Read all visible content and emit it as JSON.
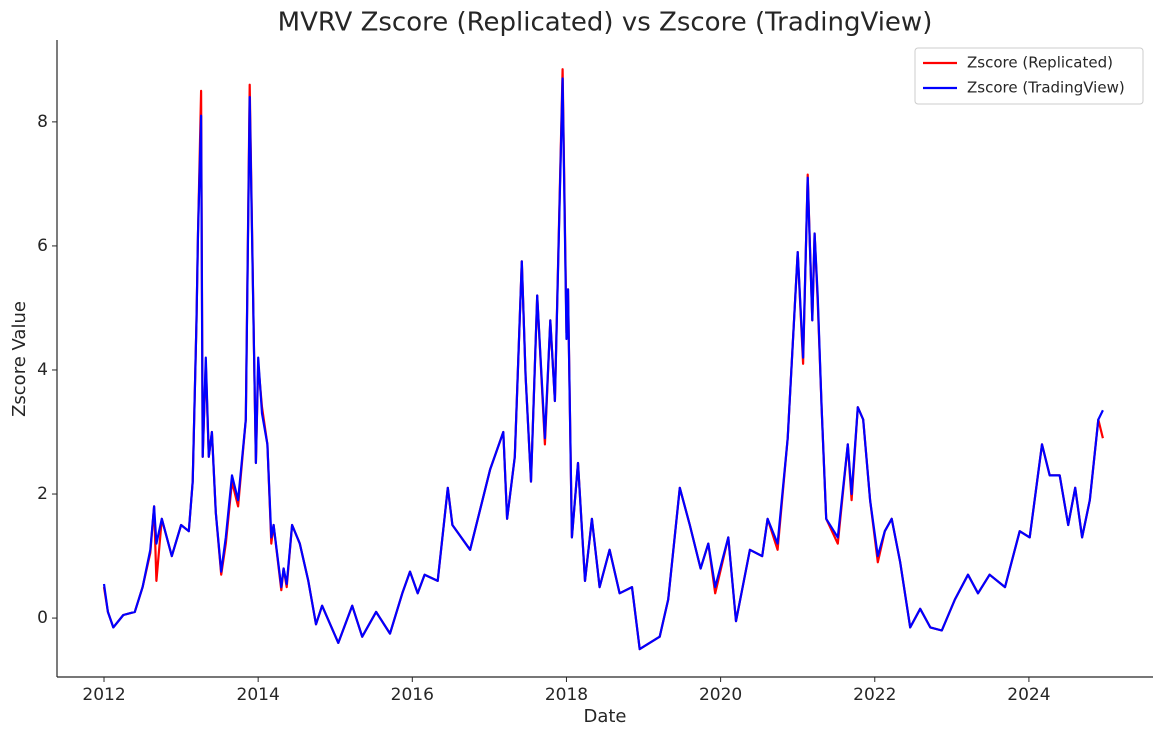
{
  "chart_data": {
    "type": "line",
    "title": "MVRV Zscore (Replicated) vs Zscore (TradingView)",
    "xlabel": "Date",
    "ylabel": "Zscore Value",
    "x": [
      2012.0,
      2012.05,
      2012.12,
      2012.25,
      2012.4,
      2012.5,
      2012.6,
      2012.65,
      2012.68,
      2012.75,
      2012.88,
      2013.0,
      2013.1,
      2013.15,
      2013.2,
      2013.22,
      2013.26,
      2013.28,
      2013.32,
      2013.36,
      2013.4,
      2013.45,
      2013.52,
      2013.58,
      2013.66,
      2013.74,
      2013.84,
      2013.89,
      2013.94,
      2013.97,
      2014.0,
      2014.05,
      2014.12,
      2014.17,
      2014.2,
      2014.3,
      2014.33,
      2014.37,
      2014.44,
      2014.54,
      2014.65,
      2014.75,
      2014.83,
      2015.04,
      2015.22,
      2015.35,
      2015.53,
      2015.71,
      2015.87,
      2015.97,
      2016.07,
      2016.16,
      2016.33,
      2016.46,
      2016.52,
      2016.75,
      2017.01,
      2017.18,
      2017.23,
      2017.33,
      2017.42,
      2017.47,
      2017.54,
      2017.62,
      2017.72,
      2017.79,
      2017.85,
      2017.95,
      2018.0,
      2018.02,
      2018.07,
      2018.15,
      2018.24,
      2018.33,
      2018.43,
      2018.56,
      2018.69,
      2018.85,
      2018.95,
      2019.21,
      2019.32,
      2019.47,
      2019.6,
      2019.74,
      2019.84,
      2019.93,
      2020.1,
      2020.2,
      2020.38,
      2020.54,
      2020.61,
      2020.74,
      2020.87,
      2021.0,
      2021.07,
      2021.13,
      2021.19,
      2021.22,
      2021.26,
      2021.31,
      2021.37,
      2021.52,
      2021.65,
      2021.7,
      2021.78,
      2021.85,
      2021.94,
      2022.04,
      2022.13,
      2022.22,
      2022.33,
      2022.46,
      2022.59,
      2022.72,
      2022.87,
      2023.04,
      2023.21,
      2023.34,
      2023.49,
      2023.69,
      2023.88,
      2024.01,
      2024.17,
      2024.27,
      2024.4,
      2024.51,
      2024.6,
      2024.69,
      2024.79,
      2024.9,
      2024.96
    ],
    "series": [
      {
        "name": "Zscore (Replicated)",
        "color": "#ff0000",
        "values": [
          0.5,
          0.1,
          -0.15,
          0.05,
          0.1,
          0.5,
          1.05,
          1.8,
          0.6,
          1.6,
          1.0,
          1.5,
          1.4,
          2.2,
          4.8,
          6.2,
          8.5,
          2.6,
          4.1,
          2.6,
          3.0,
          1.7,
          0.7,
          1.2,
          2.2,
          1.8,
          3.2,
          8.6,
          4.8,
          2.5,
          4.1,
          3.4,
          2.8,
          1.2,
          1.5,
          0.45,
          0.8,
          0.5,
          1.5,
          1.2,
          0.6,
          -0.1,
          0.2,
          -0.4,
          0.2,
          -0.3,
          0.1,
          -0.25,
          0.4,
          0.75,
          0.4,
          0.7,
          0.6,
          2.1,
          1.5,
          1.1,
          2.4,
          3.0,
          1.6,
          2.6,
          5.75,
          3.9,
          2.2,
          5.2,
          2.8,
          4.8,
          3.5,
          8.85,
          4.6,
          5.3,
          1.3,
          2.5,
          0.6,
          1.6,
          0.5,
          1.1,
          0.4,
          0.5,
          -0.5,
          -0.3,
          0.3,
          2.1,
          1.5,
          0.8,
          1.2,
          0.4,
          1.3,
          -0.05,
          1.1,
          1.0,
          1.6,
          1.1,
          2.9,
          5.9,
          4.1,
          7.15,
          4.8,
          6.2,
          5.1,
          3.4,
          1.6,
          1.2,
          2.8,
          1.9,
          3.4,
          3.2,
          1.9,
          0.9,
          1.4,
          1.6,
          0.9,
          -0.15,
          0.15,
          -0.15,
          -0.2,
          0.3,
          0.7,
          0.4,
          0.7,
          0.5,
          1.4,
          1.3,
          2.8,
          2.3,
          2.3,
          1.5,
          2.1,
          1.3,
          1.9,
          3.2,
          2.9
        ]
      },
      {
        "name": "Zscore (TradingView)",
        "color": "#0000ff",
        "values": [
          0.55,
          0.1,
          -0.15,
          0.05,
          0.1,
          0.5,
          1.1,
          1.8,
          1.2,
          1.6,
          1.0,
          1.5,
          1.4,
          2.2,
          4.8,
          6.2,
          8.1,
          2.6,
          4.2,
          2.6,
          3.0,
          1.7,
          0.75,
          1.3,
          2.3,
          1.9,
          3.2,
          8.4,
          4.8,
          2.5,
          4.2,
          3.3,
          2.8,
          1.3,
          1.5,
          0.5,
          0.8,
          0.55,
          1.5,
          1.2,
          0.6,
          -0.1,
          0.2,
          -0.4,
          0.2,
          -0.3,
          0.1,
          -0.25,
          0.4,
          0.75,
          0.4,
          0.7,
          0.6,
          2.1,
          1.5,
          1.1,
          2.4,
          3.0,
          1.6,
          2.6,
          5.75,
          3.9,
          2.2,
          5.2,
          2.9,
          4.8,
          3.5,
          8.7,
          4.5,
          5.3,
          1.3,
          2.5,
          0.6,
          1.6,
          0.5,
          1.1,
          0.4,
          0.5,
          -0.5,
          -0.3,
          0.3,
          2.1,
          1.5,
          0.8,
          1.2,
          0.5,
          1.3,
          -0.05,
          1.1,
          1.0,
          1.6,
          1.2,
          2.9,
          5.9,
          4.2,
          7.1,
          4.8,
          6.2,
          5.2,
          3.4,
          1.6,
          1.3,
          2.8,
          2.0,
          3.4,
          3.2,
          1.9,
          1.0,
          1.4,
          1.6,
          0.9,
          -0.15,
          0.15,
          -0.15,
          -0.2,
          0.3,
          0.7,
          0.4,
          0.7,
          0.5,
          1.4,
          1.3,
          2.8,
          2.3,
          2.3,
          1.5,
          2.1,
          1.3,
          1.9,
          3.2,
          3.35
        ]
      }
    ],
    "xlim": [
      2011.39,
      2025.61
    ],
    "xticks": [
      2012,
      2014,
      2016,
      2018,
      2020,
      2022,
      2024
    ],
    "ylim": [
      -0.95,
      9.32
    ],
    "yticks": [
      0,
      2,
      4,
      6,
      8
    ],
    "grid": false,
    "legend": "upper right"
  }
}
